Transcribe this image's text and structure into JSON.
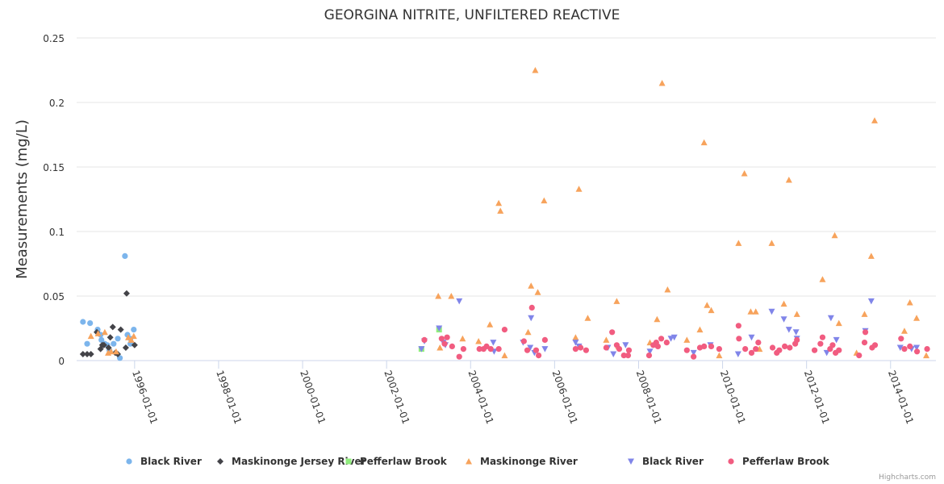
{
  "chart_data": {
    "type": "scatter",
    "title": "GEORGINA NITRITE, UNFILTERED REACTIVE",
    "xlabel": "",
    "ylabel": "Measurements (mg/L)",
    "xlim": [
      1994.62,
      2015.08
    ],
    "ylim": [
      0,
      0.25
    ],
    "yticks": [
      0,
      0.05,
      0.1,
      0.15,
      0.2,
      0.25
    ],
    "ytick_labels": [
      "0",
      "0.05",
      "0.1",
      "0.15",
      "0.2",
      "0.25"
    ],
    "xticks": [
      1996,
      1998,
      2000,
      2002,
      2004,
      2006,
      2008,
      2010,
      2012,
      2014
    ],
    "xtick_labels": [
      "1996-01-01",
      "1998-01-01",
      "2000-01-01",
      "2002-01-01",
      "2004-01-01",
      "2006-01-01",
      "2008-01-01",
      "2010-01-01",
      "2012-01-01",
      "2014-01-01"
    ],
    "grid": "horizontal",
    "legend_position": "bottom",
    "credits": "Highcharts.com",
    "series": [
      {
        "name": "Black River",
        "marker": "circle",
        "color": "#7cb5ec",
        "points": [
          [
            1994.77,
            0.03
          ],
          [
            1994.94,
            0.029
          ],
          [
            1994.87,
            0.013
          ],
          [
            1995.12,
            0.024
          ],
          [
            1995.19,
            0.02
          ],
          [
            1995.21,
            0.016
          ],
          [
            1995.29,
            0.013
          ],
          [
            1995.35,
            0.012
          ],
          [
            1995.4,
            0.008
          ],
          [
            1995.5,
            0.013
          ],
          [
            1995.6,
            0.017
          ],
          [
            1995.65,
            0.002
          ],
          [
            1995.77,
            0.081
          ],
          [
            1995.83,
            0.02
          ],
          [
            1995.9,
            0.017
          ],
          [
            1995.98,
            0.024
          ],
          [
            1995.9,
            0.013
          ]
        ]
      },
      {
        "name": "Maskinonge Jersey River",
        "marker": "diamond",
        "color": "#434348",
        "points": [
          [
            1994.77,
            0.005
          ],
          [
            1994.87,
            0.005
          ],
          [
            1994.96,
            0.005
          ],
          [
            1995.1,
            0.022
          ],
          [
            1995.19,
            0.009
          ],
          [
            1995.23,
            0.012
          ],
          [
            1995.27,
            0.012
          ],
          [
            1995.38,
            0.01
          ],
          [
            1995.42,
            0.018
          ],
          [
            1995.48,
            0.026
          ],
          [
            1995.6,
            0.005
          ],
          [
            1995.67,
            0.024
          ],
          [
            1995.79,
            0.01
          ],
          [
            1995.81,
            0.052
          ],
          [
            1996.0,
            0.012
          ],
          [
            1995.54,
            0.006
          ]
        ]
      },
      {
        "name": "Pefferlaw Brook",
        "marker": "square",
        "color": "#90ed7d",
        "points": [
          [
            2002.83,
            0.009
          ],
          [
            2003.25,
            0.024
          ]
        ]
      },
      {
        "name": "Maskinonge River",
        "marker": "triangle",
        "color": "#f7a35c",
        "points": [
          [
            1994.96,
            0.019
          ],
          [
            1995.13,
            0.021
          ],
          [
            1995.29,
            0.022
          ],
          [
            1995.37,
            0.006
          ],
          [
            1995.44,
            0.007
          ],
          [
            1995.56,
            0.007
          ],
          [
            1995.85,
            0.018
          ],
          [
            1995.92,
            0.016
          ],
          [
            1995.98,
            0.019
          ],
          [
            2003.23,
            0.05
          ],
          [
            2003.54,
            0.05
          ],
          [
            2003.27,
            0.01
          ],
          [
            2003.81,
            0.017
          ],
          [
            2004.19,
            0.015
          ],
          [
            2004.46,
            0.028
          ],
          [
            2004.67,
            0.122
          ],
          [
            2004.71,
            0.116
          ],
          [
            2004.81,
            0.004
          ],
          [
            2005.37,
            0.022
          ],
          [
            2005.44,
            0.058
          ],
          [
            2005.54,
            0.225
          ],
          [
            2005.6,
            0.053
          ],
          [
            2005.75,
            0.124
          ],
          [
            2006.5,
            0.018
          ],
          [
            2006.58,
            0.133
          ],
          [
            2006.79,
            0.033
          ],
          [
            2007.23,
            0.016
          ],
          [
            2007.48,
            0.046
          ],
          [
            2007.52,
            0.011
          ],
          [
            2008.27,
            0.014
          ],
          [
            2008.44,
            0.032
          ],
          [
            2008.56,
            0.215
          ],
          [
            2008.69,
            0.055
          ],
          [
            2009.15,
            0.016
          ],
          [
            2009.46,
            0.024
          ],
          [
            2009.56,
            0.169
          ],
          [
            2009.63,
            0.043
          ],
          [
            2009.73,
            0.039
          ],
          [
            2009.92,
            0.004
          ],
          [
            2010.38,
            0.091
          ],
          [
            2010.52,
            0.145
          ],
          [
            2010.67,
            0.038
          ],
          [
            2010.79,
            0.038
          ],
          [
            2010.88,
            0.009
          ],
          [
            2011.17,
            0.091
          ],
          [
            2011.46,
            0.044
          ],
          [
            2011.58,
            0.14
          ],
          [
            2011.77,
            0.036
          ],
          [
            2012.38,
            0.063
          ],
          [
            2012.67,
            0.097
          ],
          [
            2012.77,
            0.029
          ],
          [
            2013.19,
            0.006
          ],
          [
            2013.38,
            0.036
          ],
          [
            2013.54,
            0.081
          ],
          [
            2013.62,
            0.186
          ],
          [
            2014.33,
            0.023
          ],
          [
            2014.46,
            0.045
          ],
          [
            2014.62,
            0.033
          ],
          [
            2014.85,
            0.004
          ]
        ]
      },
      {
        "name": "Black River",
        "marker": "triangle-down",
        "color": "#8085e9",
        "points": [
          [
            2002.83,
            0.009
          ],
          [
            2002.9,
            0.015
          ],
          [
            2003.25,
            0.025
          ],
          [
            2003.35,
            0.014
          ],
          [
            2003.4,
            0.012
          ],
          [
            2003.73,
            0.046
          ],
          [
            2004.54,
            0.014
          ],
          [
            2004.56,
            0.007
          ],
          [
            2005.25,
            0.014
          ],
          [
            2005.44,
            0.033
          ],
          [
            2005.42,
            0.01
          ],
          [
            2005.52,
            0.006
          ],
          [
            2005.77,
            0.009
          ],
          [
            2006.5,
            0.014
          ],
          [
            2006.58,
            0.011
          ],
          [
            2007.27,
            0.01
          ],
          [
            2007.4,
            0.005
          ],
          [
            2007.69,
            0.012
          ],
          [
            2008.27,
            0.007
          ],
          [
            2008.77,
            0.017
          ],
          [
            2008.85,
            0.018
          ],
          [
            2009.31,
            0.006
          ],
          [
            2009.71,
            0.012
          ],
          [
            2010.37,
            0.005
          ],
          [
            2010.69,
            0.018
          ],
          [
            2011.17,
            0.038
          ],
          [
            2011.46,
            0.032
          ],
          [
            2011.58,
            0.024
          ],
          [
            2011.75,
            0.022
          ],
          [
            2011.77,
            0.017
          ],
          [
            2012.58,
            0.033
          ],
          [
            2012.48,
            0.006
          ],
          [
            2012.71,
            0.016
          ],
          [
            2013.4,
            0.023
          ],
          [
            2013.54,
            0.046
          ],
          [
            2014.23,
            0.01
          ],
          [
            2014.5,
            0.009
          ],
          [
            2014.62,
            0.01
          ]
        ]
      },
      {
        "name": "Pefferlaw Brook",
        "marker": "circle",
        "color": "#f15c80",
        "points": [
          [
            2002.9,
            0.016
          ],
          [
            2003.31,
            0.017
          ],
          [
            2003.38,
            0.013
          ],
          [
            2003.44,
            0.018
          ],
          [
            2003.56,
            0.011
          ],
          [
            2003.73,
            0.003
          ],
          [
            2003.83,
            0.009
          ],
          [
            2004.21,
            0.009
          ],
          [
            2004.31,
            0.009
          ],
          [
            2004.38,
            0.011
          ],
          [
            2004.48,
            0.009
          ],
          [
            2004.67,
            0.009
          ],
          [
            2004.81,
            0.024
          ],
          [
            2005.27,
            0.015
          ],
          [
            2005.46,
            0.041
          ],
          [
            2005.35,
            0.008
          ],
          [
            2005.56,
            0.008
          ],
          [
            2005.62,
            0.004
          ],
          [
            2005.77,
            0.016
          ],
          [
            2006.5,
            0.009
          ],
          [
            2006.62,
            0.01
          ],
          [
            2006.75,
            0.008
          ],
          [
            2007.23,
            0.01
          ],
          [
            2007.37,
            0.022
          ],
          [
            2007.48,
            0.012
          ],
          [
            2007.54,
            0.009
          ],
          [
            2007.65,
            0.004
          ],
          [
            2007.75,
            0.004
          ],
          [
            2007.77,
            0.008
          ],
          [
            2008.25,
            0.004
          ],
          [
            2008.35,
            0.012
          ],
          [
            2008.42,
            0.014
          ],
          [
            2008.46,
            0.011
          ],
          [
            2008.54,
            0.017
          ],
          [
            2008.67,
            0.014
          ],
          [
            2009.15,
            0.008
          ],
          [
            2009.31,
            0.003
          ],
          [
            2009.46,
            0.01
          ],
          [
            2009.56,
            0.011
          ],
          [
            2009.73,
            0.011
          ],
          [
            2009.92,
            0.009
          ],
          [
            2010.38,
            0.027
          ],
          [
            2010.39,
            0.017
          ],
          [
            2010.54,
            0.009
          ],
          [
            2010.69,
            0.006
          ],
          [
            2010.79,
            0.009
          ],
          [
            2010.85,
            0.014
          ],
          [
            2011.19,
            0.01
          ],
          [
            2011.29,
            0.006
          ],
          [
            2011.35,
            0.008
          ],
          [
            2011.48,
            0.011
          ],
          [
            2011.6,
            0.01
          ],
          [
            2011.73,
            0.013
          ],
          [
            2011.77,
            0.016
          ],
          [
            2012.19,
            0.008
          ],
          [
            2012.33,
            0.013
          ],
          [
            2012.38,
            0.018
          ],
          [
            2012.56,
            0.009
          ],
          [
            2012.62,
            0.012
          ],
          [
            2012.69,
            0.006
          ],
          [
            2012.77,
            0.008
          ],
          [
            2013.25,
            0.004
          ],
          [
            2013.38,
            0.014
          ],
          [
            2013.4,
            0.022
          ],
          [
            2013.56,
            0.01
          ],
          [
            2013.63,
            0.012
          ],
          [
            2014.25,
            0.017
          ],
          [
            2014.33,
            0.009
          ],
          [
            2014.46,
            0.011
          ],
          [
            2014.63,
            0.007
          ],
          [
            2014.87,
            0.009
          ]
        ]
      }
    ]
  }
}
